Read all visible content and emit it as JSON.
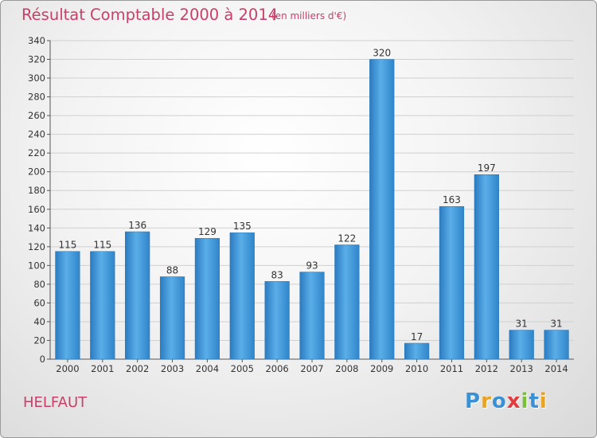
{
  "chart_data": {
    "type": "bar",
    "title": "Résultat Comptable 2000 à 2014",
    "subtitle": "(en milliers d'€)",
    "xlabel": "",
    "ylabel": "",
    "categories": [
      "2000",
      "2001",
      "2002",
      "2003",
      "2004",
      "2005",
      "2006",
      "2007",
      "2008",
      "2009",
      "2010",
      "2011",
      "2012",
      "2013",
      "2014"
    ],
    "values": [
      115,
      115,
      136,
      88,
      129,
      135,
      83,
      93,
      122,
      320,
      17,
      163,
      197,
      31,
      31
    ],
    "ylim": [
      0,
      340
    ],
    "yticks": [
      0,
      20,
      40,
      60,
      80,
      100,
      120,
      140,
      160,
      180,
      200,
      220,
      240,
      260,
      280,
      300,
      320,
      340
    ],
    "grid": true,
    "bar_color": "#3a91d6"
  },
  "place": "HELFAUT",
  "logo": {
    "text": "Proxiti",
    "letter_colors": [
      "#3a91d6",
      "#e8a320",
      "#3a91d6",
      "#e23c3c",
      "#7cbf3a",
      "#3a91d6",
      "#e8a320"
    ]
  }
}
